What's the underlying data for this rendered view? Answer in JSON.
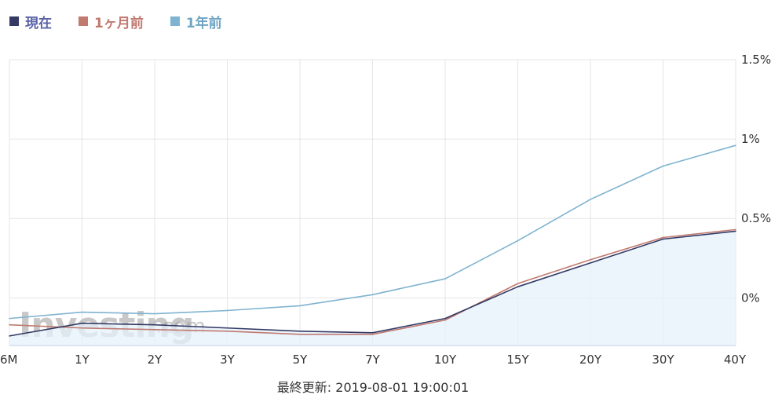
{
  "chart_data": {
    "type": "line",
    "categories": [
      "6M",
      "1Y",
      "2Y",
      "3Y",
      "5Y",
      "7Y",
      "10Y",
      "15Y",
      "20Y",
      "30Y",
      "40Y"
    ],
    "series": [
      {
        "name": "現在",
        "color": "#343a64",
        "values": [
          -0.24,
          -0.16,
          -0.17,
          -0.19,
          -0.21,
          -0.22,
          -0.13,
          0.07,
          0.22,
          0.37,
          0.42
        ],
        "area": true
      },
      {
        "name": "1ヶ月前",
        "color": "#c07a70",
        "values": [
          -0.17,
          -0.19,
          -0.2,
          -0.21,
          -0.23,
          -0.23,
          -0.14,
          0.09,
          0.24,
          0.38,
          0.43
        ]
      },
      {
        "name": "1年前",
        "color": "#7fb3d0",
        "values": [
          -0.13,
          -0.09,
          -0.1,
          -0.08,
          -0.05,
          0.02,
          0.12,
          0.36,
          0.62,
          0.83,
          0.96
        ]
      }
    ],
    "y_ticks": [
      {
        "value": 1.5,
        "label": "1.5%"
      },
      {
        "value": 1.0,
        "label": "1%"
      },
      {
        "value": 0.5,
        "label": "0.5%"
      },
      {
        "value": 0.0,
        "label": "0%"
      }
    ],
    "ylim": [
      -0.3,
      1.5
    ],
    "grid": true,
    "legend_position": "top-left"
  },
  "legend_colors": {
    "現在": "#5b63a8",
    "1ヶ月前": "#c07a70",
    "1年前": "#6fa4c4"
  },
  "watermark": {
    "brand": "Investing",
    "suffix": ".com"
  },
  "footer": {
    "last_updated": "最終更新: 2019-08-01 19:00:01"
  }
}
